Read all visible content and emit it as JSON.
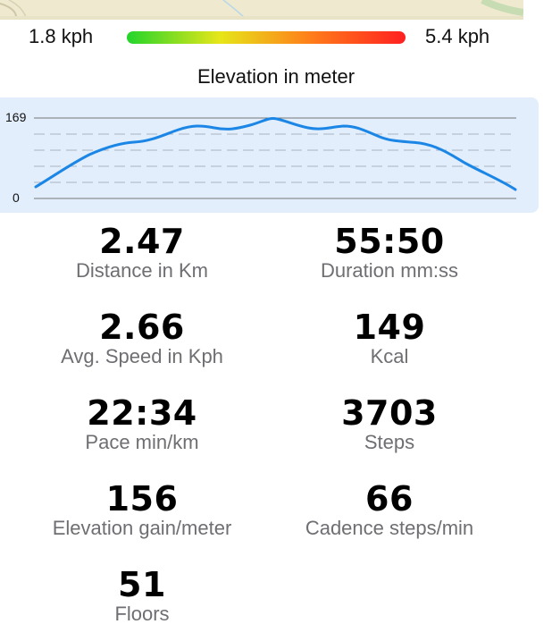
{
  "speed_legend": {
    "min_label": "1.8 kph",
    "max_label": "5.4 kph",
    "gradient_colors": [
      "#22d52b",
      "#e6e619",
      "#ff7b1a",
      "#ff2020"
    ]
  },
  "elevation": {
    "title": "Elevation in meter",
    "max_label": "169",
    "min_label": "0",
    "line_color": "#1b86e6",
    "panel_color": "#e2eefb"
  },
  "stats": [
    {
      "value": "2.47",
      "label": "Distance in Km"
    },
    {
      "value": "55:50",
      "label": "Duration mm:ss"
    },
    {
      "value": "2.66",
      "label": "Avg. Speed in Kph"
    },
    {
      "value": "149",
      "label": "Kcal"
    },
    {
      "value": "22:34",
      "label": "Pace min/km"
    },
    {
      "value": "3703",
      "label": "Steps"
    },
    {
      "value": "156",
      "label": "Elevation gain/meter"
    },
    {
      "value": "66",
      "label": "Cadence steps/min"
    },
    {
      "value": "51",
      "label": "Floors"
    }
  ]
}
